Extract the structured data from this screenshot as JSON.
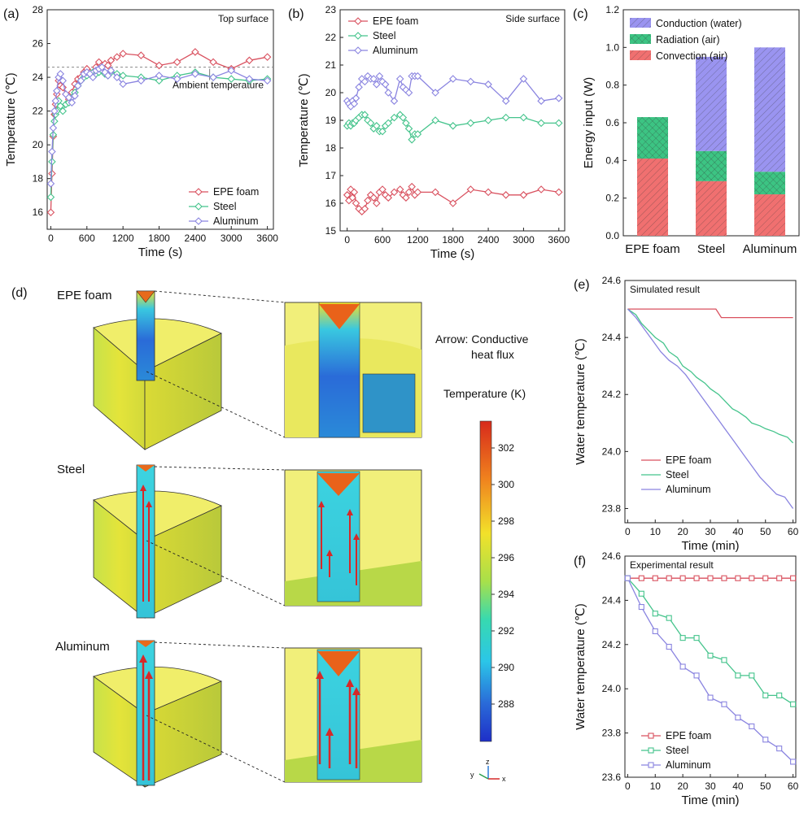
{
  "panels": {
    "a": "(a)",
    "b": "(b)",
    "c": "(c)",
    "d": "(d)",
    "e": "(e)",
    "f": "(f)"
  },
  "colors": {
    "epe": "#d9515f",
    "steel": "#45c48c",
    "aluminum": "#8a84e0",
    "conduction": "#9a94f0",
    "radiation": "#3cc483",
    "convection": "#f07070",
    "ambient": "#888888"
  },
  "panel_d": {
    "rows": [
      {
        "key": "epe",
        "label": "EPE foam"
      },
      {
        "key": "steel",
        "label": "Steel"
      },
      {
        "key": "aluminum",
        "label": "Aluminum"
      }
    ],
    "arrow_note_line1": "Arrow: Conductive",
    "arrow_note_line2": "heat flux",
    "colorbar_title": "Temperature (K)",
    "colorbar_ticks": [
      "302",
      "300",
      "298",
      "296",
      "294",
      "292",
      "290",
      "288"
    ],
    "axis_labels": {
      "y": "y",
      "z": "z",
      "x": "x"
    }
  },
  "chart_data": [
    {
      "id": "a",
      "type": "line",
      "annotation": "Top surface",
      "ambient_label": "Ambient temperature",
      "ambient_value": 24.6,
      "xlabel": "Time (s)",
      "ylabel": "Temperature (℃)",
      "xlim": [
        -60,
        3700
      ],
      "ylim": [
        15,
        28
      ],
      "xticks": [
        0,
        600,
        1200,
        1800,
        2400,
        3000,
        3600
      ],
      "yticks": [
        16,
        18,
        20,
        22,
        24,
        26,
        28
      ],
      "legend_position": "bottom-right",
      "series": [
        {
          "name": "EPE foam",
          "key": "epe",
          "x": [
            0,
            20,
            40,
            60,
            80,
            100,
            130,
            160,
            200,
            250,
            300,
            350,
            400,
            450,
            500,
            550,
            600,
            650,
            700,
            750,
            800,
            850,
            900,
            950,
            1000,
            1100,
            1200,
            1500,
            1800,
            2100,
            2400,
            2700,
            3000,
            3300,
            3600
          ],
          "y": [
            16.0,
            18.3,
            20.5,
            21.8,
            22.4,
            23.0,
            23.8,
            23.5,
            23.4,
            23.0,
            22.7,
            23.1,
            23.6,
            23.9,
            24.0,
            24.3,
            24.5,
            24.3,
            24.2,
            24.6,
            24.9,
            24.7,
            24.8,
            24.7,
            25.0,
            25.2,
            25.4,
            25.3,
            24.7,
            24.9,
            25.5,
            24.9,
            24.5,
            25.0,
            25.2
          ]
        },
        {
          "name": "Steel",
          "key": "steel",
          "x": [
            0,
            20,
            40,
            60,
            80,
            100,
            130,
            160,
            200,
            250,
            300,
            350,
            400,
            450,
            500,
            550,
            600,
            650,
            700,
            750,
            800,
            850,
            900,
            950,
            1000,
            1100,
            1200,
            1500,
            1800,
            2100,
            2400,
            2700,
            3000,
            3300,
            3600
          ],
          "y": [
            16.9,
            19.0,
            20.6,
            21.4,
            21.8,
            22.0,
            22.6,
            22.3,
            22.0,
            22.4,
            22.5,
            22.8,
            23.1,
            23.5,
            23.8,
            24.0,
            24.1,
            24.2,
            24.3,
            24.2,
            24.3,
            24.4,
            24.2,
            24.1,
            24.3,
            24.2,
            24.1,
            24.0,
            23.8,
            24.1,
            24.3,
            24.0,
            23.9,
            23.8,
            23.9
          ]
        },
        {
          "name": "Aluminum",
          "key": "aluminum",
          "x": [
            0,
            20,
            40,
            60,
            80,
            100,
            130,
            160,
            200,
            250,
            300,
            350,
            400,
            450,
            500,
            550,
            600,
            650,
            700,
            750,
            800,
            850,
            900,
            950,
            1000,
            1100,
            1200,
            1500,
            1800,
            2100,
            2400,
            2700,
            3000,
            3300,
            3600
          ],
          "y": [
            17.7,
            19.6,
            21.0,
            22.0,
            22.6,
            23.2,
            24.0,
            24.2,
            23.8,
            23.0,
            22.8,
            22.5,
            22.9,
            23.5,
            23.8,
            24.2,
            24.3,
            24.2,
            24.0,
            24.4,
            24.5,
            24.6,
            24.3,
            24.1,
            24.4,
            24.0,
            23.6,
            23.8,
            24.1,
            23.9,
            24.2,
            24.0,
            24.4,
            23.9,
            23.8
          ]
        }
      ]
    },
    {
      "id": "b",
      "type": "line",
      "annotation": "Side surface",
      "xlabel": "Time (s)",
      "ylabel": "Temperature (℃)",
      "xlim": [
        -120,
        3700
      ],
      "ylim": [
        15,
        23
      ],
      "xticks": [
        0,
        600,
        1200,
        1800,
        2400,
        3000,
        3600
      ],
      "yticks": [
        15,
        16,
        17,
        18,
        19,
        20,
        21,
        22,
        23
      ],
      "legend_position": "top-left",
      "series": [
        {
          "name": "EPE foam",
          "key": "epe",
          "x": [
            0,
            30,
            60,
            90,
            120,
            150,
            200,
            250,
            300,
            350,
            400,
            450,
            500,
            550,
            600,
            650,
            700,
            800,
            900,
            950,
            1000,
            1050,
            1100,
            1150,
            1200,
            1500,
            1800,
            2100,
            2400,
            2700,
            3000,
            3300,
            3600
          ],
          "y": [
            16.3,
            16.1,
            16.5,
            16.2,
            16.4,
            16.0,
            15.8,
            15.7,
            15.8,
            16.1,
            16.3,
            16.2,
            16.0,
            16.4,
            16.5,
            16.3,
            16.2,
            16.4,
            16.5,
            16.3,
            16.2,
            16.4,
            16.6,
            16.3,
            16.4,
            16.4,
            16.0,
            16.5,
            16.4,
            16.3,
            16.3,
            16.5,
            16.4
          ]
        },
        {
          "name": "Steel",
          "key": "steel",
          "x": [
            0,
            30,
            60,
            90,
            120,
            150,
            200,
            250,
            300,
            350,
            400,
            450,
            500,
            550,
            600,
            650,
            700,
            800,
            900,
            950,
            1000,
            1050,
            1100,
            1150,
            1200,
            1500,
            1800,
            2100,
            2400,
            2700,
            3000,
            3300,
            3600
          ],
          "y": [
            18.8,
            18.9,
            18.8,
            18.9,
            18.9,
            19.0,
            19.1,
            19.2,
            19.2,
            19.0,
            18.9,
            18.7,
            18.8,
            18.6,
            18.6,
            18.8,
            18.9,
            19.1,
            19.2,
            19.1,
            18.9,
            18.7,
            18.3,
            18.5,
            18.5,
            19.0,
            18.8,
            18.9,
            19.0,
            19.1,
            19.1,
            18.9,
            18.9
          ]
        },
        {
          "name": "Aluminum",
          "key": "aluminum",
          "x": [
            0,
            30,
            60,
            90,
            120,
            150,
            200,
            250,
            300,
            350,
            400,
            450,
            500,
            550,
            600,
            650,
            700,
            800,
            900,
            950,
            1000,
            1050,
            1100,
            1150,
            1200,
            1500,
            1800,
            2100,
            2400,
            2700,
            3000,
            3300,
            3600
          ],
          "y": [
            19.7,
            19.6,
            19.5,
            19.7,
            19.6,
            19.8,
            20.2,
            20.5,
            20.4,
            20.6,
            20.5,
            20.5,
            20.3,
            20.6,
            20.4,
            20.3,
            20.0,
            19.7,
            20.5,
            20.2,
            20.1,
            20.0,
            20.6,
            20.6,
            20.6,
            20.0,
            20.5,
            20.4,
            20.3,
            19.7,
            20.5,
            19.7,
            19.8
          ]
        }
      ]
    },
    {
      "id": "c",
      "type": "bar",
      "stacked": true,
      "ylabel": "Energy input (W)",
      "categories": [
        "EPE foam",
        "Steel",
        "Aluminum"
      ],
      "ylim": [
        0,
        1.2
      ],
      "yticks": [
        0.0,
        0.2,
        0.4,
        0.6,
        0.8,
        1.0,
        1.2
      ],
      "legend_position": "top",
      "series": [
        {
          "name": "Convection (air)",
          "key": "convection",
          "values": [
            0.41,
            0.29,
            0.22
          ]
        },
        {
          "name": "Radiation (air)",
          "key": "radiation",
          "values": [
            0.22,
            0.16,
            0.12
          ]
        },
        {
          "name": "Conduction (water)",
          "key": "conduction",
          "values": [
            0.0,
            0.5,
            0.66
          ]
        }
      ]
    },
    {
      "id": "e",
      "type": "line",
      "annotation": "Simulated result",
      "xlabel": "Time (min)",
      "ylabel": "Water temperature (℃)",
      "xlim": [
        -1,
        61
      ],
      "ylim": [
        23.75,
        24.6
      ],
      "xticks": [
        0,
        10,
        20,
        30,
        40,
        50,
        60
      ],
      "yticks": [
        23.8,
        24.0,
        24.2,
        24.4,
        24.6
      ],
      "legend_position": "bottom-left",
      "series": [
        {
          "name": "EPE foam",
          "key": "epe",
          "x": [
            0,
            32,
            34,
            60
          ],
          "y": [
            24.5,
            24.5,
            24.47,
            24.47
          ]
        },
        {
          "name": "Steel",
          "key": "steel",
          "x": [
            0,
            3,
            5,
            8,
            10,
            13,
            15,
            18,
            20,
            23,
            25,
            28,
            30,
            33,
            35,
            38,
            40,
            43,
            45,
            48,
            50,
            53,
            55,
            58,
            60
          ],
          "y": [
            24.5,
            24.48,
            24.45,
            24.42,
            24.4,
            24.38,
            24.35,
            24.33,
            24.3,
            24.28,
            24.26,
            24.24,
            24.22,
            24.2,
            24.18,
            24.15,
            24.14,
            24.12,
            24.1,
            24.09,
            24.08,
            24.07,
            24.06,
            24.05,
            24.03
          ]
        },
        {
          "name": "Aluminum",
          "key": "aluminum",
          "x": [
            0,
            3,
            6,
            9,
            12,
            15,
            18,
            21,
            24,
            27,
            30,
            33,
            36,
            39,
            42,
            45,
            48,
            51,
            54,
            57,
            60
          ],
          "y": [
            24.5,
            24.47,
            24.43,
            24.39,
            24.35,
            24.32,
            24.3,
            24.27,
            24.23,
            24.19,
            24.15,
            24.11,
            24.07,
            24.03,
            23.99,
            23.95,
            23.91,
            23.88,
            23.85,
            23.84,
            23.8
          ]
        }
      ]
    },
    {
      "id": "f",
      "type": "line",
      "markers": true,
      "annotation": "Experimental result",
      "xlabel": "Time (min)",
      "ylabel": "Water temperature (℃)",
      "xlim": [
        -1,
        61
      ],
      "ylim": [
        23.6,
        24.6
      ],
      "xticks": [
        0,
        10,
        20,
        30,
        40,
        50,
        60
      ],
      "yticks": [
        23.6,
        23.8,
        24.0,
        24.2,
        24.4,
        24.6
      ],
      "legend_position": "bottom-left",
      "series": [
        {
          "name": "EPE foam",
          "key": "epe",
          "x": [
            0,
            5,
            10,
            15,
            20,
            25,
            30,
            35,
            40,
            45,
            50,
            55,
            60
          ],
          "y": [
            24.5,
            24.5,
            24.5,
            24.5,
            24.5,
            24.5,
            24.5,
            24.5,
            24.5,
            24.5,
            24.5,
            24.5,
            24.5
          ]
        },
        {
          "name": "Steel",
          "key": "steel",
          "x": [
            0,
            5,
            10,
            15,
            20,
            25,
            30,
            35,
            40,
            45,
            50,
            55,
            60
          ],
          "y": [
            24.5,
            24.43,
            24.34,
            24.32,
            24.23,
            24.23,
            24.15,
            24.13,
            24.06,
            24.06,
            23.97,
            23.97,
            23.93
          ]
        },
        {
          "name": "Aluminum",
          "key": "aluminum",
          "x": [
            0,
            5,
            10,
            15,
            20,
            25,
            30,
            35,
            40,
            45,
            50,
            55,
            60
          ],
          "y": [
            24.5,
            24.37,
            24.26,
            24.19,
            24.1,
            24.06,
            23.96,
            23.93,
            23.87,
            23.83,
            23.77,
            23.73,
            23.67
          ]
        }
      ]
    }
  ]
}
